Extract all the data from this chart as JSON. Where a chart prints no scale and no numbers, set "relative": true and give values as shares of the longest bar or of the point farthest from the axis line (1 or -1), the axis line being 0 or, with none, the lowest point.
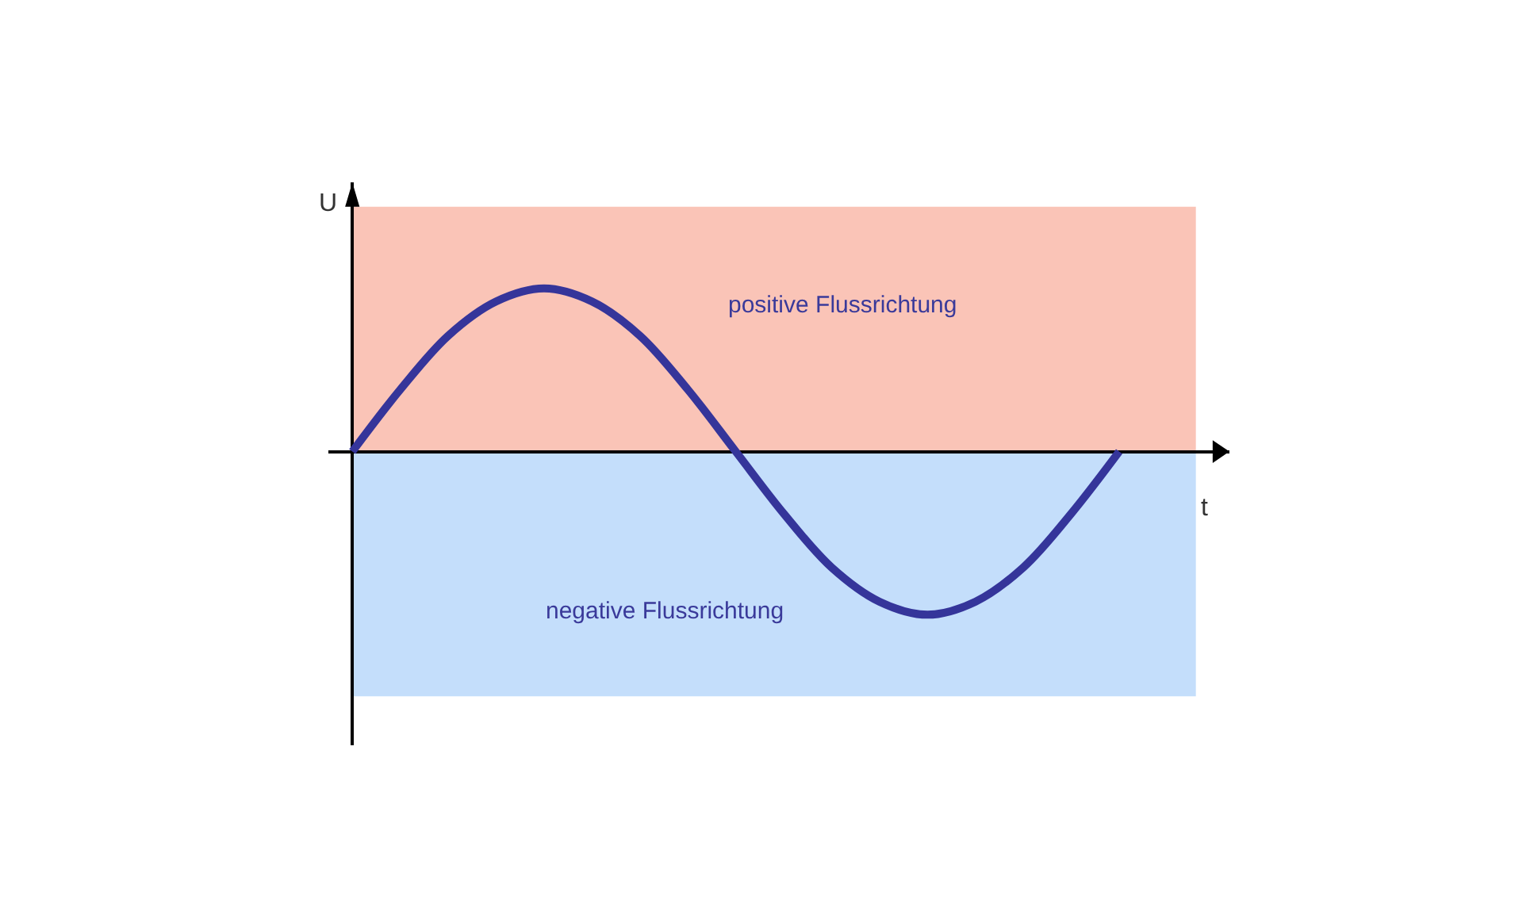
{
  "chart_data": {
    "type": "line",
    "relative": true,
    "xlabel": "t",
    "ylabel": "U",
    "categories": [
      null,
      null,
      null,
      null,
      null,
      null,
      null,
      null,
      null,
      null,
      null,
      null,
      null,
      null,
      null,
      null,
      null
    ],
    "series": [
      {
        "color": "#35359a",
        "values": [
          0,
          0.38,
          0.71,
          0.92,
          1,
          0.92,
          0.71,
          0.38,
          0,
          -0.38,
          -0.71,
          -0.92,
          -1,
          -0.92,
          -0.71,
          -0.38,
          0
        ]
      }
    ],
    "bands": [
      {
        "axis": "y",
        "from": 0,
        "to": 1.5,
        "label": "positive Flussrichtung",
        "color": "#f9b5a5"
      },
      {
        "axis": "y",
        "from": -1.5,
        "to": 0,
        "label": "negative Flussrichtung",
        "color": "#b5d6fa"
      }
    ]
  }
}
